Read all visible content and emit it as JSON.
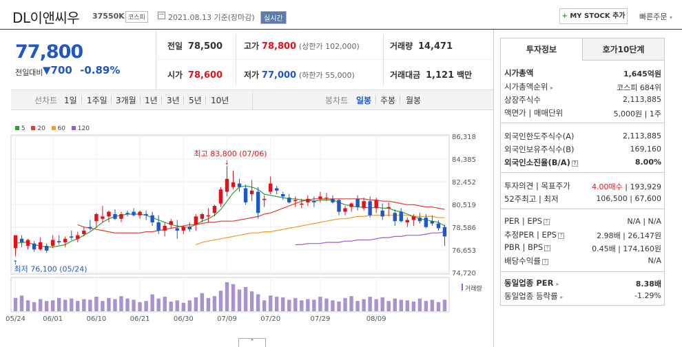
{
  "header": {
    "company": "DL이앤씨우",
    "code": "37550K",
    "market_badge": "코스피",
    "date_text": "2021.08.13 기준(장마감)",
    "live_badge": "실시간",
    "mystock_plus": "+",
    "mystock_label": "MY STOCK 추가",
    "quick_order": "빠른주문"
  },
  "price": {
    "current": "77,800",
    "change_label": "전일대비",
    "change_arrow": "▼",
    "change_value": "700",
    "change_pct": "-0.89%"
  },
  "stats": {
    "prev_label": "전일",
    "prev": "78,500",
    "high_label": "고가",
    "high": "78,800",
    "upper_limit": "(상한가 102,000)",
    "volume_label": "거래량",
    "volume": "14,471",
    "open_label": "시가",
    "open": "78,600",
    "low_label": "저가",
    "low": "77,000",
    "lower_limit": "(하한가 55,000)",
    "amount_label": "거래대금",
    "amount": "1,121",
    "amount_unit": "백만"
  },
  "tabs": {
    "line_label": "선차트",
    "periods": [
      "1일",
      "1주일",
      "3개월",
      "1년",
      "3년",
      "5년",
      "10년"
    ],
    "candle_label": "봉차트",
    "candle": [
      "일봉",
      "주봉",
      "월봉"
    ]
  },
  "colors": {
    "ma5": "#2ca02c",
    "ma20": "#e8392c",
    "ma60": "#f29a28",
    "ma120": "#9b59d0",
    "up": "#e3111b",
    "down": "#1f57c9"
  },
  "chart_data": {
    "type": "candlestick",
    "legend": [
      "5",
      "20",
      "60",
      "120"
    ],
    "y_ticks": [
      "86,318",
      "84,385",
      "82,452",
      "80,519",
      "78,586",
      "76,653",
      "74,720"
    ],
    "ylim": [
      74720,
      86318
    ],
    "x_ticks": [
      "05/24",
      "06/01",
      "06/10",
      "06/21",
      "06/30",
      "07/09",
      "07/20",
      "07/29",
      "08/09"
    ],
    "high_annotation": "최고 83,800 (07/06)",
    "low_annotation": "최저 76,100 (05/24)",
    "volume_label": "거래량",
    "candles": [
      [
        76800,
        77900,
        76100,
        77900
      ],
      [
        77600,
        77900,
        76900,
        77300
      ],
      [
        77000,
        77600,
        76700,
        77500
      ],
      [
        77200,
        77400,
        76500,
        76700
      ],
      [
        76700,
        77700,
        76600,
        77300
      ],
      [
        77000,
        77200,
        76400,
        76600
      ],
      [
        77000,
        77900,
        76800,
        77500
      ],
      [
        77400,
        77900,
        77100,
        77300
      ],
      [
        77300,
        77800,
        76900,
        77600
      ],
      [
        77800,
        78300,
        77500,
        77700
      ],
      [
        77600,
        78200,
        77300,
        77900
      ],
      [
        78000,
        78600,
        77800,
        78300
      ],
      [
        78600,
        79200,
        78300,
        78500
      ],
      [
        79100,
        79800,
        78500,
        79700
      ],
      [
        79300,
        80400,
        79000,
        79500
      ],
      [
        79500,
        80000,
        79000,
        79900
      ],
      [
        79700,
        80100,
        79200,
        79300
      ],
      [
        79300,
        79900,
        79000,
        79700
      ],
      [
        79800,
        80000,
        79500,
        79700
      ],
      [
        79900,
        80200,
        79500,
        79600
      ],
      [
        79600,
        80000,
        79300,
        79900
      ],
      [
        79700,
        80000,
        79200,
        79600
      ],
      [
        79600,
        79900,
        78700,
        79000
      ],
      [
        79000,
        79600,
        78000,
        78300
      ],
      [
        78300,
        79000,
        77800,
        78700
      ],
      [
        78800,
        79300,
        78500,
        79100
      ],
      [
        78500,
        79200,
        77600,
        78300
      ],
      [
        78300,
        78700,
        78000,
        78600
      ],
      [
        78600,
        79000,
        78200,
        78400
      ],
      [
        78800,
        79700,
        78300,
        79500
      ],
      [
        79300,
        79800,
        79000,
        79700
      ],
      [
        79500,
        80200,
        79000,
        79600
      ],
      [
        79800,
        80500,
        79500,
        80400
      ],
      [
        80600,
        82000,
        80300,
        81800
      ],
      [
        81600,
        83800,
        81200,
        82700
      ],
      [
        82000,
        83400,
        81800,
        82400
      ],
      [
        82300,
        82700,
        81600,
        82000
      ],
      [
        81900,
        82200,
        80500,
        80700
      ],
      [
        81400,
        82600,
        80800,
        81700
      ],
      [
        81600,
        82000,
        79300,
        79800
      ],
      [
        80900,
        81300,
        80300,
        81000
      ],
      [
        81600,
        82900,
        81400,
        82300
      ],
      [
        81900,
        82100,
        81400,
        81700
      ],
      [
        81400,
        81600,
        80900,
        81200
      ],
      [
        81100,
        81400,
        80600,
        80700
      ],
      [
        80800,
        81200,
        80300,
        80900
      ],
      [
        80500,
        81000,
        80200,
        80600
      ],
      [
        80700,
        81300,
        80400,
        81000
      ],
      [
        80800,
        81200,
        80300,
        80700
      ],
      [
        81000,
        81600,
        80700,
        81200
      ],
      [
        81100,
        81500,
        80800,
        81100
      ],
      [
        81000,
        81300,
        80600,
        80700
      ],
      [
        80900,
        81000,
        79600,
        79900
      ],
      [
        79900,
        80400,
        79600,
        80200
      ],
      [
        80300,
        80700,
        79900,
        80600
      ],
      [
        81000,
        81300,
        80000,
        80300
      ],
      [
        80200,
        81100,
        80000,
        80800
      ],
      [
        80800,
        81200,
        79400,
        79600
      ],
      [
        80200,
        81100,
        79800,
        80900
      ],
      [
        80000,
        80600,
        79200,
        79500
      ],
      [
        80200,
        80700,
        79500,
        80300
      ],
      [
        79800,
        80100,
        78700,
        79100
      ],
      [
        79900,
        80200,
        79000,
        79100
      ],
      [
        79000,
        79400,
        78600,
        79200
      ],
      [
        79200,
        79700,
        78700,
        79500
      ],
      [
        79400,
        79800,
        78900,
        79100
      ],
      [
        79400,
        79700,
        78500,
        78600
      ],
      [
        79100,
        79600,
        78700,
        78900
      ],
      [
        78900,
        79200,
        78300,
        78500
      ],
      [
        78600,
        78800,
        77000,
        77800
      ]
    ],
    "ma5": [
      77200,
      77300,
      77300,
      77100,
      77000,
      76900,
      76900,
      77000,
      77100,
      77400,
      77600,
      77900,
      78200,
      78600,
      79000,
      79300,
      79500,
      79600,
      79700,
      79700,
      79700,
      79600,
      79400,
      79200,
      79000,
      78800,
      78700,
      78600,
      78600,
      78800,
      79100,
      79300,
      79600,
      80100,
      80800,
      81500,
      82000,
      82100,
      82000,
      81800,
      81400,
      81300,
      81200,
      81100,
      81000,
      81000,
      80900,
      80900,
      80800,
      80900,
      80900,
      80900,
      80700,
      80500,
      80400,
      80300,
      80300,
      80200,
      80300,
      80200,
      80200,
      80000,
      79900,
      79700,
      79500,
      79300,
      79200,
      79100,
      79000,
      78700
    ],
    "ma20": [
      78800,
      78600,
      78500,
      78400,
      78300,
      78200,
      78100,
      78100,
      78100,
      78100,
      78100,
      78200,
      78200,
      78300,
      78400,
      78500,
      78600,
      78700,
      78800,
      78800,
      78900,
      79000,
      79000,
      79100,
      79100,
      79100,
      79200,
      79300,
      79400,
      79500,
      79700,
      79800,
      80000,
      80200,
      80400,
      80600,
      80800,
      80900,
      81000,
      81000,
      81000,
      81000,
      81000,
      81000,
      81000,
      81000,
      81000,
      80900,
      80900,
      80800,
      80800,
      80700,
      80600,
      80500,
      80500,
      80400,
      80300,
      80300,
      80200,
      80100
    ],
    "ma60": [
      77100,
      77300,
      77400,
      77500,
      77600,
      77700,
      77800,
      77900,
      78000,
      78100,
      78100,
      78200,
      78200,
      78300,
      78400,
      78500,
      78600,
      78700,
      78800,
      78900,
      79000,
      79100,
      79200,
      79300,
      79300,
      79400,
      79500,
      79500,
      79600,
      79600,
      79600,
      79600,
      79600,
      79600,
      79600,
      79500,
      79500,
      79500,
      79500,
      79400,
      79400
    ],
    "ma120": [
      77100,
      77100,
      77200,
      77200,
      77200,
      77300,
      77300,
      77300,
      77400,
      77400,
      77500,
      77500,
      77500,
      77600,
      77700,
      77700,
      77800,
      77800,
      77900,
      77900,
      77900,
      78000,
      78100,
      78100,
      78200
    ],
    "volumes": [
      22,
      26,
      18,
      15,
      20,
      17,
      18,
      22,
      19,
      21,
      17,
      20,
      19,
      24,
      17,
      22,
      20,
      25,
      21,
      19,
      15,
      17,
      28,
      21,
      24,
      16,
      18,
      14,
      18,
      23,
      30,
      22,
      25,
      34,
      48,
      45,
      36,
      40,
      33,
      28,
      18,
      26,
      24,
      23,
      19,
      22,
      18,
      20,
      19,
      24,
      21,
      18,
      16,
      22,
      25,
      17,
      20,
      24,
      20,
      23,
      17,
      21,
      19,
      18,
      16,
      21,
      17,
      19,
      15,
      19
    ]
  },
  "side": {
    "tab_active": "투자정보",
    "tab_other": "호가10단계",
    "market_cap_label": "시가총액",
    "market_cap": "1,645억원",
    "cap_rank_label": "시가총액순위",
    "cap_rank": "코스피 684위",
    "shares_label": "상장주식수",
    "shares": "2,113,885",
    "face_label": "액면가 | 매매단위",
    "face": "5,000원 | 1주",
    "foreign_limit_label": "외국인한도주식수(A)",
    "foreign_limit": "2,113,885",
    "foreign_hold_label": "외국인보유주식수(B)",
    "foreign_hold": "169,160",
    "foreign_ratio_label": "외국인소진율(B/A)",
    "foreign_ratio": "8.00%",
    "opinion_label": "투자의견 | 목표주가",
    "opinion": "4.00매수",
    "opinion_target": "193,929",
    "w52_label": "52주최고 | 최저",
    "w52": "106,500 | 67,600",
    "per_label": "PER | EPS",
    "per": "N/A | N/A",
    "est_per_label": "추정PER | EPS",
    "est_per": "2.98배 | 26,147원",
    "pbr_label": "PBR | BPS",
    "pbr": "0.45배 | 174,160원",
    "div_label": "배당수익률",
    "div": "N/A",
    "ind_per_label": "동일업종 PER",
    "ind_per": "8.38배",
    "ind_rate_label": "동일업종 등락률",
    "ind_rate": "-1.29%"
  }
}
